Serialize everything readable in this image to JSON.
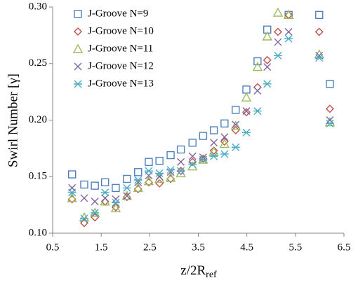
{
  "chart_data": {
    "type": "scatter",
    "xlabel": "z/2R",
    "xlabel_sub": "ref",
    "ylabel": "Swirl Number [γ]",
    "xlim": [
      0.5,
      6.5
    ],
    "xticks": [
      0.5,
      1.5,
      2.5,
      3.5,
      4.5,
      5.5,
      6.5
    ],
    "ylim": [
      0.1,
      0.3
    ],
    "yticks": [
      {
        "value": 0.1,
        "label": "0.10"
      },
      0.15,
      {
        "value": 0.2,
        "label": "0.20"
      },
      0.25,
      {
        "value": 0.3,
        "label": "0.30"
      }
    ],
    "legend": "top-left",
    "series": [
      {
        "name": "J-Groove N=9",
        "color": "#4f81bd",
        "marker": "square",
        "x": [
          0.9,
          1.15,
          1.37,
          1.58,
          1.8,
          2.03,
          2.26,
          2.48,
          2.7,
          2.93,
          3.14,
          3.38,
          3.6,
          3.82,
          4.04,
          4.27,
          4.49,
          4.72,
          4.92,
          5.36,
          5.99,
          6.21
        ],
        "values": [
          0.152,
          0.143,
          0.142,
          0.145,
          0.14,
          0.148,
          0.154,
          0.163,
          0.164,
          0.169,
          0.174,
          0.18,
          0.186,
          0.191,
          0.197,
          0.209,
          0.227,
          0.252,
          0.28,
          0.293,
          0.293,
          0.232
        ]
      },
      {
        "name": "J-Groove N=10",
        "color": "#c0504d",
        "marker": "diamond",
        "x": [
          0.9,
          1.15,
          1.37,
          1.58,
          1.8,
          2.03,
          2.26,
          2.48,
          2.7,
          2.93,
          3.14,
          3.38,
          3.6,
          3.82,
          4.04,
          4.27,
          4.49,
          4.72,
          4.92,
          5.14,
          5.36,
          5.99,
          6.21
        ],
        "values": [
          0.13,
          0.109,
          0.114,
          0.128,
          0.123,
          0.132,
          0.139,
          0.145,
          0.144,
          0.148,
          0.155,
          0.163,
          0.166,
          0.173,
          0.181,
          0.191,
          0.207,
          0.229,
          0.253,
          0.278,
          0.293,
          0.278,
          0.21
        ]
      },
      {
        "name": "J-Groove N=11",
        "color": "#9bbb59",
        "marker": "triangle",
        "x": [
          0.9,
          1.15,
          1.37,
          1.58,
          1.8,
          2.03,
          2.26,
          2.48,
          2.7,
          2.93,
          3.14,
          3.38,
          3.6,
          3.82,
          4.04,
          4.27,
          4.49,
          4.72,
          4.92,
          5.14,
          5.36,
          5.99,
          6.21
        ],
        "values": [
          0.131,
          0.114,
          0.118,
          0.128,
          0.122,
          0.133,
          0.14,
          0.146,
          0.148,
          0.149,
          0.153,
          0.159,
          0.165,
          0.172,
          0.179,
          0.195,
          0.22,
          0.247,
          0.274,
          0.295,
          0.293,
          0.258,
          0.198
        ]
      },
      {
        "name": "J-Groove N=12",
        "color": "#8064a2",
        "marker": "cross",
        "x": [
          0.9,
          1.15,
          1.37,
          1.58,
          1.8,
          2.03,
          2.26,
          2.48,
          2.7,
          2.93,
          3.14,
          3.38,
          3.6,
          3.82,
          4.04,
          4.27,
          4.49,
          4.72,
          4.92,
          5.14,
          5.36,
          5.99,
          6.21
        ],
        "values": [
          0.14,
          0.131,
          0.128,
          0.131,
          0.13,
          0.133,
          0.145,
          0.151,
          0.15,
          0.154,
          0.163,
          0.168,
          0.167,
          0.18,
          0.185,
          0.196,
          0.208,
          0.226,
          0.247,
          0.269,
          0.278,
          0.257,
          0.2
        ]
      },
      {
        "name": "J-Groove N=13",
        "color": "#4bacc6",
        "marker": "star",
        "x": [
          0.9,
          1.15,
          1.37,
          1.58,
          1.8,
          2.03,
          2.26,
          2.48,
          2.7,
          2.93,
          3.14,
          3.38,
          3.6,
          3.82,
          4.04,
          4.27,
          4.49,
          4.72,
          4.92,
          5.14,
          5.36,
          5.99,
          6.21
        ],
        "values": [
          0.136,
          0.113,
          0.118,
          0.136,
          0.127,
          0.14,
          0.147,
          0.155,
          0.153,
          0.156,
          0.155,
          0.161,
          0.165,
          0.168,
          0.17,
          0.176,
          0.189,
          0.208,
          0.232,
          0.257,
          0.272,
          0.255,
          0.197
        ]
      }
    ]
  }
}
